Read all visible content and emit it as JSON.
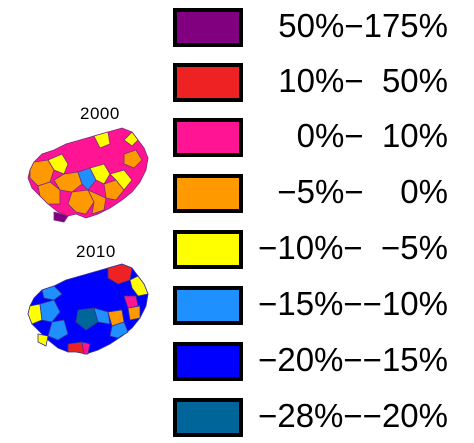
{
  "maps": [
    {
      "id": "2000",
      "title": "2000"
    },
    {
      "id": "2010",
      "title": "2010"
    }
  ],
  "legend": {
    "items": [
      {
        "range": "50%−175%",
        "color": "#800080"
      },
      {
        "range": "10%−  50%",
        "color": "#ee2222"
      },
      {
        "range": "0%−  10%",
        "color": "#ff1493"
      },
      {
        "range": "−5%−    0%",
        "color": "#ff9900"
      },
      {
        "range": "−10%−  −5%",
        "color": "#ffff00"
      },
      {
        "range": "−15%−−10%",
        "color": "#1e90ff"
      },
      {
        "range": "−20%−−15%",
        "color": "#0000ff"
      },
      {
        "range": "−28%−−20%",
        "color": "#006699"
      }
    ]
  }
}
